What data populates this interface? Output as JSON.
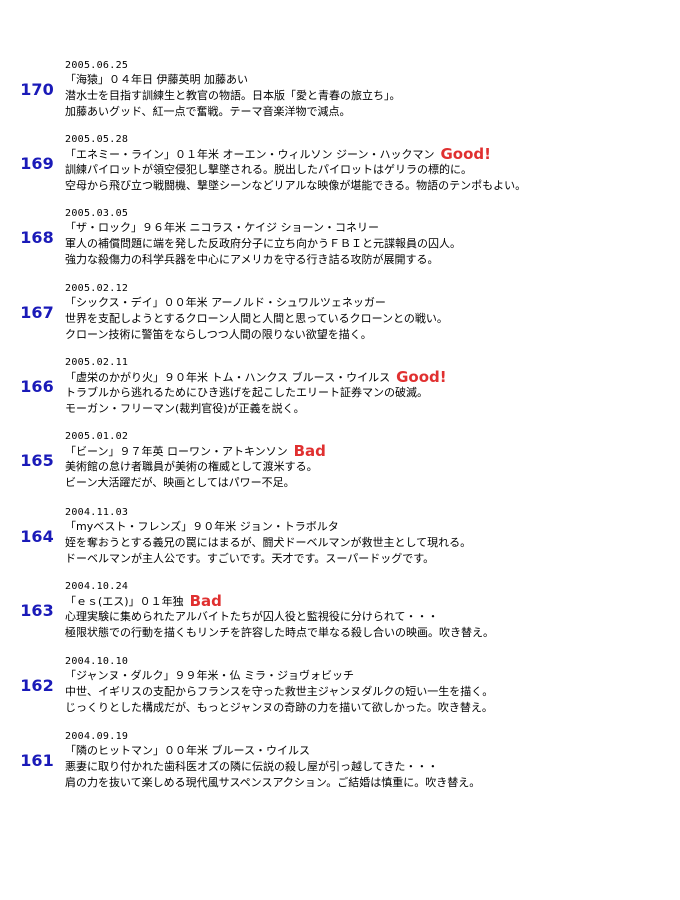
{
  "entries": [
    {
      "num": "170",
      "date": "2005.06.25",
      "title": "「海猿」０４年日 伊藤英明 加藤あい",
      "rating": "",
      "desc1": "潜水士を目指す訓練生と教官の物語。日本版「愛と青春の旅立ち」。",
      "desc2": "加藤あいグッド、紅一点で奮戦。テーマ音楽洋物で減点。"
    },
    {
      "num": "169",
      "date": "2005.05.28",
      "title": "「エネミー・ライン」０１年米 オーエン・ウィルソン ジーン・ハックマン",
      "rating": "Good!",
      "desc1": "訓練パイロットが領空侵犯し撃墜される。脱出したパイロットはゲリラの標的に。",
      "desc2": "空母から飛び立つ戦闘機、撃墜シーンなどリアルな映像が堪能できる。物語のテンポもよい。"
    },
    {
      "num": "168",
      "date": "2005.03.05",
      "title": "「ザ・ロック」９６年米 ニコラス・ケイジ ショーン・コネリー",
      "rating": "",
      "desc1": "軍人の補償問題に端を発した反政府分子に立ち向かうＦＢＩと元諜報員の囚人。",
      "desc2": "強力な殺傷力の科学兵器を中心にアメリカを守る行き詰る攻防が展開する。"
    },
    {
      "num": "167",
      "date": "2005.02.12",
      "title": "「シックス・デイ」００年米 アーノルド・シュワルツェネッガー",
      "rating": "",
      "desc1": "世界を支配しようとするクローン人間と人間と思っているクローンとの戦い。",
      "desc2": "クローン技術に警笛をならしつつ人間の限りない欲望を描く。"
    },
    {
      "num": "166",
      "date": "2005.02.11",
      "title": "「虚栄のかがり火」９０年米 トム・ハンクス ブルース・ウイルス",
      "rating": "Good!",
      "desc1": "トラブルから逃れるためにひき逃げを起こしたエリート証券マンの破滅。",
      "desc2": "モーガン・フリーマン(裁判官役)が正義を説く。"
    },
    {
      "num": "165",
      "date": "2005.01.02",
      "title": "「ビーン」９７年英 ローワン・アトキンソン",
      "rating": "Bad",
      "desc1": "美術館の怠け者職員が美術の権威として渡米する。",
      "desc2": "ビーン大活躍だが、映画としてはパワー不足。"
    },
    {
      "num": "164",
      "date": "2004.11.03",
      "title": "「myベスト・フレンズ」９０年米 ジョン・トラボルタ",
      "rating": "",
      "desc1": "姪を奪おうとする義兄の罠にはまるが、闘犬ドーベルマンが救世主として現れる。",
      "desc2": "ドーベルマンが主人公です。すごいです。天才です。スーパードッグです。"
    },
    {
      "num": "163",
      "date": "2004.10.24",
      "title": "「ｅｓ(エス)」０１年独",
      "rating": "Bad",
      "desc1": "心理実験に集められたアルバイトたちが囚人役と監視役に分けられて・・・",
      "desc2": "極限状態での行動を描くもリンチを許容した時点で単なる殺し合いの映画。吹き替え。"
    },
    {
      "num": "162",
      "date": "2004.10.10",
      "title": "「ジャンヌ・ダルク」９９年米・仏 ミラ・ジョヴォビッチ",
      "rating": "",
      "desc1": "中世、イギリスの支配からフランスを守った救世主ジャンヌダルクの短い一生を描く。",
      "desc2": "じっくりとした構成だが、もっとジャンヌの奇跡の力を描いて欲しかった。吹き替え。"
    },
    {
      "num": "161",
      "date": "2004.09.19",
      "title": "「隣のヒットマン」００年米 ブルース・ウイルス",
      "rating": "",
      "desc1": "悪妻に取り付かれた歯科医オズの隣に伝説の殺し屋が引っ越してきた・・・",
      "desc2": "肩の力を抜いて楽しめる現代風サスペンスアクション。ご結婚は慎重に。吹き替え。"
    }
  ]
}
